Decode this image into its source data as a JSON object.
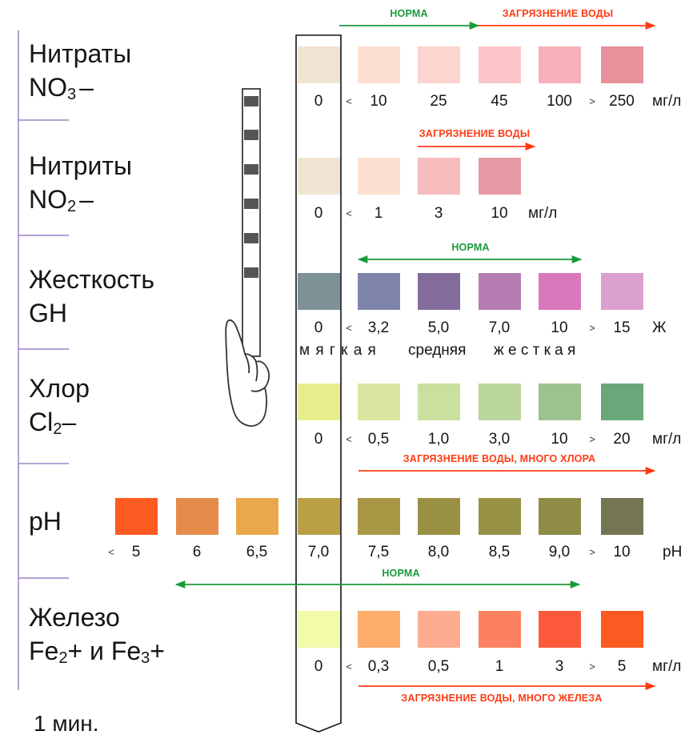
{
  "colors": {
    "norm": "#1a9a3a",
    "pollution": "#ff3a12",
    "divider": "#9c84c8"
  },
  "rows": [
    {
      "title": [
        "Нитраты",
        "NO",
        "3",
        "–"
      ],
      "swatches": [
        "#f2e4d2",
        "#fde0d2",
        "#fdd4cf",
        "#fcc6c8",
        "#f6b1b8",
        "#e6919c"
      ],
      "values": [
        "0",
        "10",
        "25",
        "45",
        "100",
        "250"
      ],
      "comparators": [
        "<",
        ">"
      ],
      "unit": "мг/л"
    },
    {
      "title": [
        "Нитриты",
        "NO",
        "2",
        "–"
      ],
      "swatches": [
        "#f2e4d2",
        "#fde0d2",
        "#f6bcbe",
        "#e79aa3"
      ],
      "values": [
        "0",
        "1",
        "3",
        "10"
      ],
      "comparators": [
        "<"
      ],
      "unit": "мг/л"
    },
    {
      "title": [
        "Жесткость",
        "GH"
      ],
      "swatches": [
        "#7d9196",
        "#7e84aa",
        "#836c9c",
        "#b67db3",
        "#d978bb",
        "#dca0cf"
      ],
      "values": [
        "0",
        "3,2",
        "5,0",
        "7,0",
        "10",
        "15"
      ],
      "comparators": [
        "<",
        ">"
      ],
      "unit": "Ж",
      "hardness": [
        "м я г к а я",
        "средняя",
        "ж   е   с   т   к   а   я"
      ]
    },
    {
      "title": [
        "Хлор",
        "Cl",
        "2",
        "–"
      ],
      "swatches": [
        "#e9ee8c",
        "#d9e6a0",
        "#cbe09e",
        "#bbd69c",
        "#9cc38e",
        "#6aa87a"
      ],
      "values": [
        "0",
        "0,5",
        "1,0",
        "3,0",
        "10",
        "20"
      ],
      "comparators": [
        "<",
        ">"
      ],
      "unit": "мг/л"
    },
    {
      "title": [
        "pH"
      ],
      "swatches": [
        "#fd5a22",
        "#e58c4a",
        "#e9a84c",
        "#bb9f45",
        "#a99745",
        "#9a9044",
        "#979145",
        "#8e8c46",
        "#747553"
      ],
      "values": [
        "5",
        "6",
        "6,5",
        "7,0",
        "7,5",
        "8,0",
        "8,5",
        "9,0",
        "10"
      ],
      "comparators": [
        "<",
        ">"
      ],
      "unit": "pH"
    },
    {
      "title": [
        "Железо",
        "Fe",
        "2",
        "+ и Fe",
        "3",
        "+"
      ],
      "swatches": [
        "#f3fbaa",
        "#fdac6a",
        "#fdac8f",
        "#fd8160",
        "#fd5a3c",
        "#fd5a22"
      ],
      "values": [
        "0",
        "0,3",
        "0,5",
        "1",
        "3",
        "5"
      ],
      "comparators": [
        "<",
        ">"
      ],
      "unit": "мг/л"
    }
  ],
  "notes": {
    "nitrate_norm": "НОРМА",
    "nitrate_pollution": "ЗАГРЯЗНЕНИЕ ВОДЫ",
    "nitrite_pollution": "ЗАГРЯЗНЕНИЕ ВОДЫ",
    "hardness_norm": "НОРМА",
    "chlorine_pollution": "ЗАГРЯЗНЕНИЕ ВОДЫ, МНОГО ХЛОРА",
    "ph_norm": "НОРМА",
    "iron_pollution": "ЗАГРЯЗНЕНИЕ ВОДЫ, МНОГО ЖЕЛЕЗА"
  },
  "time_label": "1 мин.",
  "icons": [
    "test-strip-icon",
    "hand-icon",
    "arrow-icon"
  ]
}
